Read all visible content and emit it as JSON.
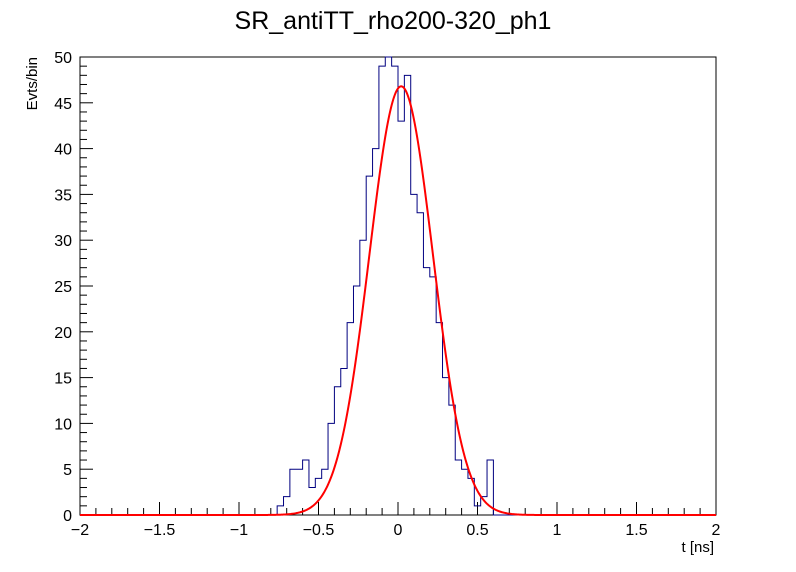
{
  "chart_data": {
    "type": "histogram",
    "title": "SR_antiTT_rho200-320_ph1",
    "xlabel": "t [ns]",
    "ylabel": "Evts/bin",
    "xlim": [
      -2,
      2
    ],
    "ylim": [
      0,
      50
    ],
    "x_ticks": [
      -2,
      -1.5,
      -1,
      -0.5,
      0,
      0.5,
      1,
      1.5,
      2
    ],
    "x_tick_labels": [
      "−2",
      "−1.5",
      "−1",
      "−0.5",
      "0",
      "0.5",
      "1",
      "1.5",
      "2"
    ],
    "y_ticks": [
      0,
      5,
      10,
      15,
      20,
      25,
      30,
      35,
      40,
      45,
      50
    ],
    "y_tick_labels": [
      "0",
      "5",
      "10",
      "15",
      "20",
      "25",
      "30",
      "35",
      "40",
      "45",
      "50"
    ],
    "bin_width": 0.04,
    "series": [
      {
        "kind": "histogram",
        "color": "#000080",
        "bin_edges_start": -2,
        "counts": [
          0,
          0,
          0,
          0,
          0,
          0,
          0,
          0,
          0,
          0,
          0,
          0,
          0,
          0,
          0,
          0,
          0,
          0,
          0,
          0,
          0,
          0,
          0,
          0,
          0,
          0,
          0,
          0,
          0,
          0,
          0,
          1,
          2,
          5,
          5,
          6,
          3,
          4,
          5,
          10,
          14,
          16,
          21,
          25,
          30,
          37,
          40,
          49,
          50,
          49,
          43,
          48,
          35,
          33,
          27,
          26,
          21,
          15,
          12,
          6,
          5,
          4,
          1,
          2,
          6,
          0,
          0,
          0,
          0,
          0,
          0,
          0,
          0,
          0,
          0,
          0,
          0,
          0,
          0,
          0,
          0,
          0,
          0,
          0,
          0,
          0,
          0,
          0,
          0,
          0,
          0,
          0,
          0,
          0,
          0,
          0,
          0,
          0,
          0,
          0
        ]
      },
      {
        "kind": "gaussian-fit",
        "color": "#ff0000",
        "amplitude": 46.8,
        "mean": 0.02,
        "sigma": 0.2,
        "range": [
          -2,
          2
        ]
      }
    ]
  }
}
